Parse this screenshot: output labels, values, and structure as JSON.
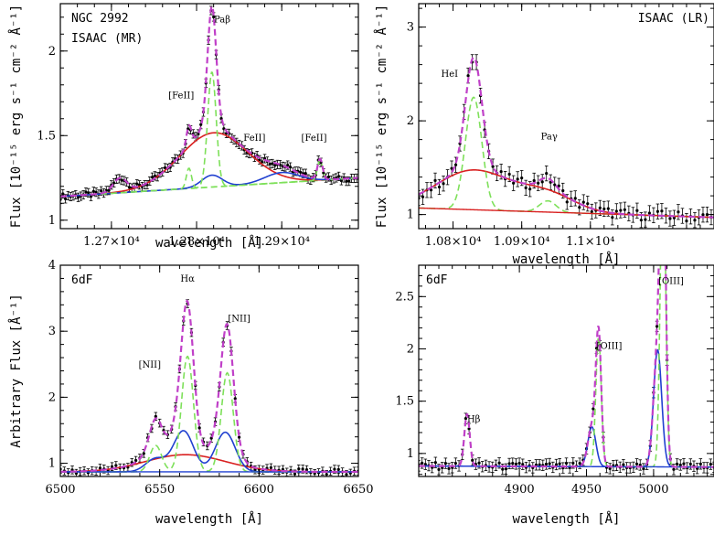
{
  "chart_data": [
    {
      "type": "line",
      "id": "p1",
      "labels": [
        "NGC 2992",
        "ISAAC (MR)"
      ],
      "xlabel": "wavelength [Å]",
      "ylabel": "Flux [10⁻¹⁵ erg s⁻¹ cm⁻² Å⁻¹]",
      "xlim": [
        12640,
        12990
      ],
      "ylim": [
        0.95,
        2.28
      ],
      "xticks": [
        {
          "v": 12700,
          "t": "1.27×10⁴"
        },
        {
          "v": 12800,
          "t": "1.28×10⁴"
        },
        {
          "v": 12900,
          "t": "1.29×10⁴"
        }
      ],
      "yticks": [
        {
          "v": 1,
          "t": "1"
        },
        {
          "v": 1.5,
          "t": "1.5"
        },
        {
          "v": 2,
          "t": "2"
        }
      ],
      "annotations": [
        {
          "text": "Paβ",
          "x": 12830,
          "y": 2.17
        },
        {
          "text": "[FeII]",
          "x": 12782,
          "y": 1.72
        },
        {
          "text": "FeII]",
          "x": 12868,
          "y": 1.47
        },
        {
          "text": "[FeII]",
          "x": 12938,
          "y": 1.47
        }
      ],
      "continuum": {
        "x0": 12640,
        "y0": 1.14,
        "x1": 12990,
        "y1": 1.25
      },
      "components": [
        {
          "color": "#d92020",
          "style": "solid",
          "gaussians": [
            {
              "c": 12820,
              "a": 0.32,
              "s": 40
            }
          ]
        },
        {
          "color": "#2040d0",
          "style": "solid",
          "gaussians": [
            {
              "c": 12818,
              "a": 0.07,
              "s": 12
            },
            {
              "c": 12900,
              "a": 0.06,
              "s": 20
            }
          ]
        },
        {
          "color": "#7ee05a",
          "style": "dashed",
          "gaussians": [
            {
              "c": 12818,
              "a": 0.68,
              "s": 5
            },
            {
              "c": 12791,
              "a": 0.12,
              "s": 3
            },
            {
              "c": 12945,
              "a": 0.12,
              "s": 3
            }
          ]
        }
      ],
      "total_gaussians": [
        {
          "c": 12820,
          "a": 0.32,
          "s": 40
        },
        {
          "c": 12818,
          "a": 0.07,
          "s": 12
        },
        {
          "c": 12900,
          "a": 0.06,
          "s": 20
        },
        {
          "c": 12818,
          "a": 0.68,
          "s": 5
        },
        {
          "c": 12791,
          "a": 0.12,
          "s": 3
        },
        {
          "c": 12945,
          "a": 0.12,
          "s": 3
        },
        {
          "c": 12710,
          "a": 0.08,
          "s": 8
        }
      ],
      "data_step": 3,
      "err": 0.025
    },
    {
      "type": "line",
      "id": "p2",
      "labels": [
        "ISAAC (LR)"
      ],
      "xlabel": "wavelength [Å]",
      "ylabel": "Flux [10⁻¹⁵ erg s⁻¹ cm⁻² Å⁻¹]",
      "xlim": [
        10750,
        11180
      ],
      "ylim": [
        0.85,
        3.25
      ],
      "xticks": [
        {
          "v": 10800,
          "t": "1.08×10⁴"
        },
        {
          "v": 10900,
          "t": "1.09×10⁴"
        },
        {
          "v": 11000,
          "t": "1.1×10⁴"
        }
      ],
      "yticks": [
        {
          "v": 1,
          "t": "1"
        },
        {
          "v": 2,
          "t": "2"
        },
        {
          "v": 3,
          "t": "3"
        }
      ],
      "annotations": [
        {
          "text": "HeI",
          "x": 10795,
          "y": 2.47
        },
        {
          "text": "Paγ",
          "x": 10940,
          "y": 1.8
        }
      ],
      "continuum": {
        "x0": 10750,
        "y0": 1.07,
        "x1": 11180,
        "y1": 0.97
      },
      "components": [
        {
          "color": "#d92020",
          "style": "solid",
          "gaussians": [
            {
              "c": 10830,
              "a": 0.42,
              "s": 55
            },
            {
              "c": 10938,
              "a": 0.18,
              "s": 40
            }
          ]
        },
        {
          "color": "#7ee05a",
          "style": "dashed",
          "gaussians": [
            {
              "c": 10830,
              "a": 1.2,
              "s": 12
            },
            {
              "c": 10938,
              "a": 0.12,
              "s": 12
            }
          ]
        }
      ],
      "total_gaussians": [
        {
          "c": 10830,
          "a": 0.42,
          "s": 55
        },
        {
          "c": 10938,
          "a": 0.18,
          "s": 40
        },
        {
          "c": 10830,
          "a": 1.2,
          "s": 12
        },
        {
          "c": 10938,
          "a": 0.12,
          "s": 12
        }
      ],
      "data_step": 6,
      "err": 0.08
    },
    {
      "type": "line",
      "id": "p3",
      "labels": [
        "6dF"
      ],
      "xlabel": "wavelength [Å]",
      "ylabel": "Arbitrary Flux [Å⁻¹]",
      "xlim": [
        6500,
        6650
      ],
      "ylim": [
        0.8,
        4.0
      ],
      "xticks": [
        {
          "v": 6500,
          "t": "6500"
        },
        {
          "v": 6550,
          "t": "6550"
        },
        {
          "v": 6600,
          "t": "6600"
        },
        {
          "v": 6650,
          "t": "6650"
        }
      ],
      "yticks": [
        {
          "v": 1,
          "t": "1"
        },
        {
          "v": 2,
          "t": "2"
        },
        {
          "v": 3,
          "t": "3"
        },
        {
          "v": 4,
          "t": "4"
        }
      ],
      "annotations": [
        {
          "text": "Hα",
          "x": 6564,
          "y": 3.75
        },
        {
          "text": "[NII]",
          "x": 6545,
          "y": 2.45
        },
        {
          "text": "[NII]",
          "x": 6590,
          "y": 3.15
        }
      ],
      "continuum": {
        "x0": 6500,
        "y0": 0.87,
        "x1": 6650,
        "y1": 0.87
      },
      "components": [
        {
          "color": "#d92020",
          "style": "solid",
          "gaussians": [
            {
              "c": 6563,
              "a": 0.26,
              "s": 20
            }
          ]
        },
        {
          "color": "#2040d0",
          "style": "solid",
          "gaussians": [
            {
              "c": 6548,
              "a": 0.2,
              "s": 5
            },
            {
              "c": 6562,
              "a": 0.62,
              "s": 5
            },
            {
              "c": 6583,
              "a": 0.6,
              "s": 5
            }
          ]
        },
        {
          "color": "#7ee05a",
          "style": "dashed",
          "gaussians": [
            {
              "c": 6548,
              "a": 0.4,
              "s": 3
            },
            {
              "c": 6564,
              "a": 1.75,
              "s": 3
            },
            {
              "c": 6584,
              "a": 1.5,
              "s": 3
            }
          ]
        }
      ],
      "total_gaussians": [
        {
          "c": 6563,
          "a": 0.26,
          "s": 20
        },
        {
          "c": 6548,
          "a": 0.2,
          "s": 5
        },
        {
          "c": 6562,
          "a": 0.62,
          "s": 5
        },
        {
          "c": 6583,
          "a": 0.6,
          "s": 5
        },
        {
          "c": 6548,
          "a": 0.4,
          "s": 3
        },
        {
          "c": 6564,
          "a": 1.75,
          "s": 3
        },
        {
          "c": 6584,
          "a": 1.5,
          "s": 3
        }
      ],
      "data_step": 2,
      "err": 0.06
    },
    {
      "type": "line",
      "id": "p4",
      "labels": [
        "6dF"
      ],
      "xlabel": "wavelength [Å]",
      "ylabel": "",
      "xlim": [
        4825,
        5045
      ],
      "ylim": [
        0.78,
        2.8
      ],
      "xticks": [
        {
          "v": 4900,
          "t": "4900"
        },
        {
          "v": 4950,
          "t": "4950"
        },
        {
          "v": 5000,
          "t": "5000"
        }
      ],
      "yticks": [
        {
          "v": 1,
          "t": "1"
        },
        {
          "v": 1.5,
          "t": "1.5"
        },
        {
          "v": 2,
          "t": "2"
        },
        {
          "v": 2.5,
          "t": "2.5"
        }
      ],
      "annotations": [
        {
          "text": "Hβ",
          "x": 4866,
          "y": 1.3
        },
        {
          "text": "[OIII]",
          "x": 4967,
          "y": 2.0
        },
        {
          "text": "[OIII]",
          "x": 5013,
          "y": 2.62
        }
      ],
      "continuum": {
        "x0": 4825,
        "y0": 0.88,
        "x1": 5045,
        "y1": 0.87
      },
      "components": [
        {
          "color": "#2040d0",
          "style": "solid",
          "gaussians": [
            {
              "c": 4954,
              "a": 0.38,
              "s": 3
            },
            {
              "c": 5003,
              "a": 1.12,
              "s": 3
            }
          ]
        },
        {
          "color": "#7ee05a",
          "style": "dashed",
          "gaussians": [
            {
              "c": 4861,
              "a": 0.5,
              "s": 2
            },
            {
              "c": 4959,
              "a": 1.25,
              "s": 2
            },
            {
              "c": 5007,
              "a": 3.0,
              "s": 2
            }
          ]
        }
      ],
      "total_gaussians": [
        {
          "c": 4954,
          "a": 0.38,
          "s": 3
        },
        {
          "c": 5003,
          "a": 1.12,
          "s": 3
        },
        {
          "c": 4861,
          "a": 0.5,
          "s": 2
        },
        {
          "c": 4959,
          "a": 1.25,
          "s": 2
        },
        {
          "c": 5007,
          "a": 3.0,
          "s": 2
        }
      ],
      "data_step": 2.5,
      "err": 0.05
    }
  ]
}
